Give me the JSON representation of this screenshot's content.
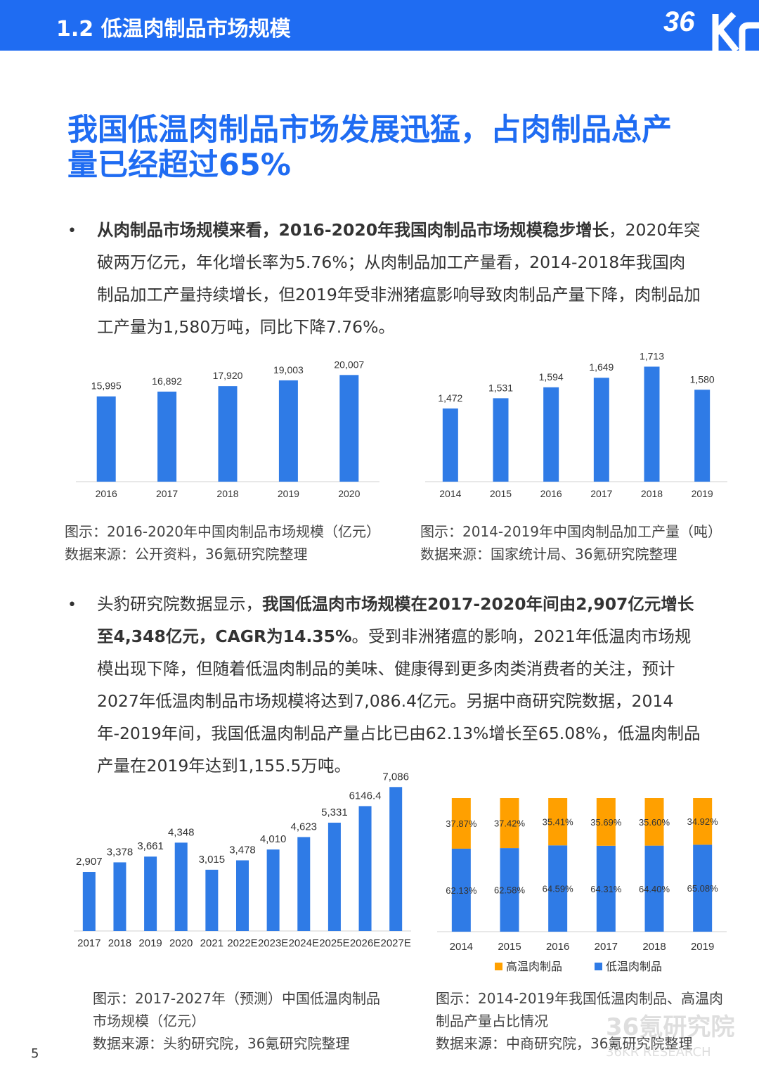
{
  "header": {
    "title": "1.2 低温肉制品市场规模",
    "logo_text": "36Kr"
  },
  "headline": "我国低温肉制品市场发展迅猛，占肉制品总产量已经超过65%",
  "bullets": [
    "•",
    "•"
  ],
  "para1": {
    "bold": "从肉制品市场规模来看，2016-2020年我国肉制品市场规模稳步增长",
    "text": "，2020年突破两万亿元，年化增长率为5.76%；从肉制品加工产量看，2014-2018年我国肉制品加工产量持续增长，但2019年受非洲猪瘟影响导致肉制品产量下降，肉制品加工产量为1,580万吨，同比下降7.76%。"
  },
  "para2": {
    "pre": "头豹研究院数据显示，",
    "bold": "我国低温肉市场规模在2017-2020年间由2,907亿元增长至4,348亿元，CAGR为14.35%",
    "text": "。受到非洲猪瘟的影响，2021年低温肉市场规模出现下降，但随着低温肉制品的美味、健康得到更多肉类消费者的关注，预计2027年低温肉制品市场规模将达到7,086.4亿元。另据中商研究院数据，2014年-2019年间，我国低温肉制品产量占比已由62.13%增长至65.08%，低温肉制品产量在2019年达到1,155.5万吨。"
  },
  "captions": {
    "c1_title": "图示：2016-2020年中国肉制品市场规模（亿元）",
    "c1_source": "数据来源：公开资料，36氪研究院整理",
    "c2_title": "图示：2014-2019年中国肉制品加工产量（吨）",
    "c2_source": "数据来源：国家统计局、36氪研究院整理",
    "c3_title_1": "图示：2017-2027年（预测）中国低温肉制品",
    "c3_title_2": "市场规模（亿元）",
    "c3_source": "数据来源：头豹研究院，36氪研究院整理",
    "c4_title_1": "图示：2014-2019年我国低温肉制品、高温肉",
    "c4_title_2": "制品产量占比情况",
    "c4_source": "数据来源：中商研究院，36氪研究院整理"
  },
  "page_number": "5",
  "watermark": {
    "line1": "36氪研究院",
    "line2": "36KR RESEARCH"
  },
  "colors": {
    "accent": "#1f6cf2",
    "bar": "#2f7be6",
    "orange": "#ffa000"
  },
  "chart_data": [
    {
      "type": "bar",
      "categories": [
        "2016",
        "2017",
        "2018",
        "2019",
        "2020"
      ],
      "values": [
        15995,
        16892,
        17920,
        19003,
        20007
      ],
      "labels": [
        "15,995",
        "16,892",
        "17,920",
        "19,003",
        "20,007"
      ],
      "ylim": [
        0,
        21500
      ]
    },
    {
      "type": "bar",
      "categories": [
        "2014",
        "2015",
        "2016",
        "2017",
        "2018",
        "2019"
      ],
      "values": [
        1472,
        1531,
        1594,
        1649,
        1713,
        1580
      ],
      "labels": [
        "1,472",
        "1,531",
        "1,594",
        "1,649",
        "1,713",
        "1,580"
      ],
      "ylim": [
        1050,
        1800
      ]
    },
    {
      "type": "bar",
      "categories": [
        "2017",
        "2018",
        "2019",
        "2020",
        "2021",
        "2022E",
        "2023E",
        "2024E",
        "2025E",
        "2026E",
        "2027E"
      ],
      "values": [
        2907,
        3378,
        3661,
        4348,
        3015,
        3478,
        4010,
        4623,
        5331,
        6146.4,
        7086
      ],
      "labels": [
        "2,907",
        "3,378",
        "3,661",
        "4,348",
        "3,015",
        "3,478",
        "4,010",
        "4,623",
        "5,331",
        "6146.4",
        "7,086"
      ],
      "ylim": [
        0,
        7200
      ]
    },
    {
      "type": "bar",
      "stacked": true,
      "categories": [
        "2014",
        "2015",
        "2016",
        "2017",
        "2018",
        "2019"
      ],
      "series": [
        {
          "name": "低温肉制品",
          "values": [
            62.13,
            62.58,
            64.59,
            64.31,
            64.4,
            65.08
          ],
          "labels": [
            "62.13%",
            "62.58%",
            "64.59%",
            "64.31%",
            "64.40%",
            "65.08%"
          ]
        },
        {
          "name": "高温肉制品",
          "values": [
            37.87,
            37.42,
            35.41,
            35.69,
            35.6,
            34.92
          ],
          "labels": [
            "37.87%",
            "37.42%",
            "35.41%",
            "35.69%",
            "35.60%",
            "34.92%"
          ]
        }
      ],
      "legend": [
        "高温肉制品",
        "低温肉制品"
      ],
      "ylim": [
        0,
        100
      ]
    }
  ]
}
